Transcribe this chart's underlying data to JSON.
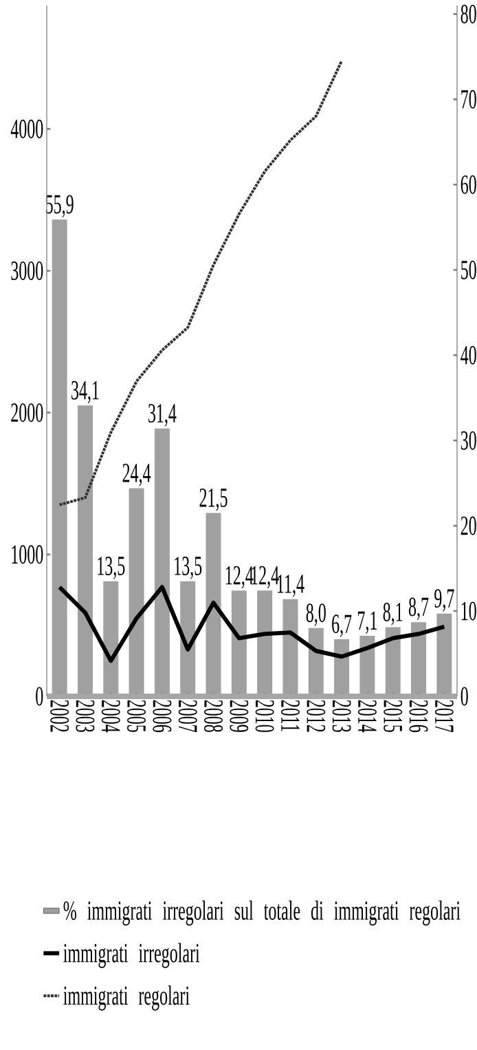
{
  "chart_data": {
    "type": "bar",
    "categories": [
      "2002",
      "2003",
      "2004",
      "2005",
      "2006",
      "2007",
      "2008",
      "2009",
      "2010",
      "2011",
      "2012",
      "2013",
      "2014",
      "2015",
      "2016",
      "2017"
    ],
    "series": [
      {
        "name": "% immigrati irregolari sul totale di immigrati regolari",
        "axis": "y2",
        "color": "#a0a0a0",
        "values": [
          55.9,
          34.1,
          13.5,
          24.4,
          31.4,
          13.5,
          21.5,
          12.4,
          12.4,
          11.4,
          8.0,
          6.7,
          7.1,
          8.1,
          8.7,
          9.7
        ],
        "value_labels": [
          "55,9",
          "34,1",
          "13,5",
          "24,4",
          "31,4",
          "13,5",
          "21,5",
          "12,4",
          "12,4",
          "11,4",
          "8,0",
          "6,7",
          "7,1",
          "8,1",
          "8,7",
          "9,7"
        ]
      },
      {
        "name": "immigrati irregolari",
        "type": "line",
        "color": "#000000",
        "line_style": "solid",
        "values": [
          770,
          590,
          250,
          550,
          770,
          330,
          660,
          410,
          440,
          450,
          320,
          280,
          340,
          410,
          440,
          490
        ]
      },
      {
        "name": "immigrati regolari",
        "type": "line",
        "color": "#333333",
        "line_style": "dotted",
        "values": [
          1350,
          1400,
          1860,
          2220,
          2440,
          2600,
          3040,
          3400,
          3700,
          3920,
          4090,
          4480,
          null,
          null,
          null,
          null
        ]
      }
    ],
    "ylim": [
      0,
      4870
    ],
    "yticks": [
      0,
      1000,
      2000,
      3000,
      4000
    ],
    "y2lim": [
      0,
      81
    ],
    "y2ticks": [
      0,
      10,
      20,
      30,
      40,
      50,
      60,
      70,
      80
    ],
    "legend": "bottom",
    "grid": false
  }
}
